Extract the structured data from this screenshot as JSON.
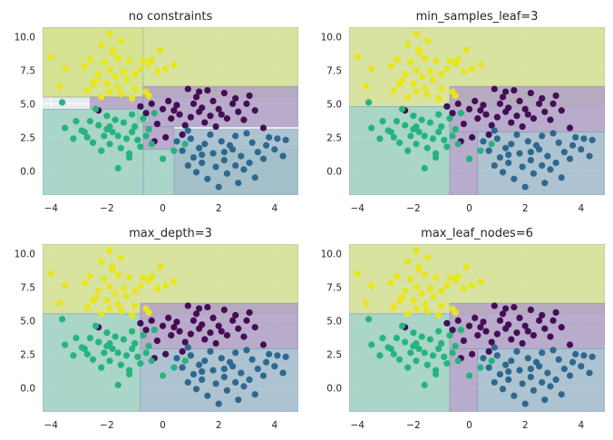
{
  "chart_data": [
    {
      "type": "scatter",
      "title": "no constraints",
      "xlim": [
        -4.3,
        4.85
      ],
      "ylim": [
        -1.8,
        10.7
      ],
      "xticks": [
        -4,
        -2,
        0,
        2,
        4
      ],
      "yticks": [
        0.0,
        2.5,
        5.0,
        7.5,
        10.0
      ],
      "xtick_labels": [
        "−4",
        "−2",
        "0",
        "2",
        "4"
      ],
      "ytick_labels": [
        "0.0",
        "2.5",
        "5.0",
        "7.5",
        "10.0"
      ],
      "grid": true,
      "regions": [
        {
          "class": 0,
          "x0": -4.3,
          "x1": 4.85,
          "y0": 5.5,
          "y1": 10.7
        },
        {
          "class": 0,
          "x0": -4.3,
          "x1": -0.7,
          "y0": 5.5,
          "y1": 10.7
        },
        {
          "class": 1,
          "x0": -2.6,
          "x1": -0.7,
          "y0": 4.6,
          "y1": 5.5
        },
        {
          "class": 1,
          "x0": -0.7,
          "x1": 4.85,
          "y0": 3.3,
          "y1": 6.3
        },
        {
          "class": 1,
          "x0": -0.7,
          "x1": 0.4,
          "y0": 1.6,
          "y1": 3.3
        },
        {
          "class": 2,
          "x0": -4.3,
          "x1": -0.7,
          "y0": -1.8,
          "y1": 4.6
        },
        {
          "class": 2,
          "x0": -0.7,
          "x1": 4.85,
          "y0": -1.8,
          "y1": 1.6
        },
        {
          "class": 3,
          "x0": 0.4,
          "x1": 4.85,
          "y0": -1.8,
          "y1": 3.1
        },
        {
          "class": 2,
          "x0": -0.9,
          "x1": -0.5,
          "y0": 3.6,
          "y1": 4.6
        }
      ]
    },
    {
      "type": "scatter",
      "title": "min_samples_leaf=3",
      "xlim": [
        -4.3,
        4.85
      ],
      "ylim": [
        -1.8,
        10.7
      ],
      "xticks": [
        -4,
        -2,
        0,
        2,
        4
      ],
      "yticks": [
        0.0,
        2.5,
        5.0,
        7.5,
        10.0
      ],
      "xtick_labels": [
        "−4",
        "−2",
        "0",
        "2",
        "4"
      ],
      "ytick_labels": [
        "0.0",
        "2.5",
        "5.0",
        "7.5",
        "10.0"
      ],
      "grid": true,
      "regions": [
        {
          "class": 0,
          "x0": -4.3,
          "x1": 4.85,
          "y0": 4.8,
          "y1": 10.7
        },
        {
          "class": 2,
          "x0": -4.3,
          "x1": -0.7,
          "y0": -1.8,
          "y1": 4.8
        },
        {
          "class": 1,
          "x0": -0.7,
          "x1": 4.85,
          "y0": 2.9,
          "y1": 6.3
        },
        {
          "class": 1,
          "x0": -0.7,
          "x1": 0.3,
          "y0": -1.8,
          "y1": 2.9
        },
        {
          "class": 3,
          "x0": 0.3,
          "x1": 4.85,
          "y0": -1.8,
          "y1": 2.9
        }
      ]
    },
    {
      "type": "scatter",
      "title": "max_depth=3",
      "xlim": [
        -4.3,
        4.85
      ],
      "ylim": [
        -1.8,
        10.7
      ],
      "xticks": [
        -4,
        -2,
        0,
        2,
        4
      ],
      "yticks": [
        0.0,
        2.5,
        5.0,
        7.5,
        10.0
      ],
      "xtick_labels": [
        "−4",
        "−2",
        "0",
        "2",
        "4"
      ],
      "ytick_labels": [
        "0.0",
        "2.5",
        "5.0",
        "7.5",
        "10.0"
      ],
      "grid": true,
      "regions": [
        {
          "class": 0,
          "x0": -4.3,
          "x1": 4.85,
          "y0": 5.5,
          "y1": 10.7
        },
        {
          "class": 2,
          "x0": -4.3,
          "x1": -0.8,
          "y0": -1.8,
          "y1": 5.5
        },
        {
          "class": 1,
          "x0": -0.8,
          "x1": 4.85,
          "y0": 2.9,
          "y1": 6.3
        },
        {
          "class": 3,
          "x0": -0.8,
          "x1": 4.85,
          "y0": -1.8,
          "y1": 2.9
        }
      ]
    },
    {
      "type": "scatter",
      "title": "max_leaf_nodes=6",
      "xlim": [
        -4.3,
        4.85
      ],
      "ylim": [
        -1.8,
        10.7
      ],
      "xticks": [
        -4,
        -2,
        0,
        2,
        4
      ],
      "yticks": [
        0.0,
        2.5,
        5.0,
        7.5,
        10.0
      ],
      "xtick_labels": [
        "−4",
        "−2",
        "0",
        "2",
        "4"
      ],
      "ytick_labels": [
        "0.0",
        "2.5",
        "5.0",
        "7.5",
        "10.0"
      ],
      "grid": true,
      "regions": [
        {
          "class": 0,
          "x0": -4.3,
          "x1": 4.85,
          "y0": 5.5,
          "y1": 10.7
        },
        {
          "class": 2,
          "x0": -4.3,
          "x1": -0.7,
          "y0": -1.8,
          "y1": 5.5
        },
        {
          "class": 1,
          "x0": -0.7,
          "x1": 4.85,
          "y0": 2.9,
          "y1": 6.3
        },
        {
          "class": 1,
          "x0": -0.7,
          "x1": 0.3,
          "y0": -1.8,
          "y1": 2.9
        },
        {
          "class": 3,
          "x0": 0.3,
          "x1": 4.85,
          "y0": -1.8,
          "y1": 2.9
        }
      ]
    }
  ],
  "points": [
    {
      "class": 0,
      "x": -1.9,
      "y": 10.2
    },
    {
      "class": 0,
      "x": -0.1,
      "y": 9.0
    },
    {
      "class": 0,
      "x": -1.5,
      "y": 9.7
    },
    {
      "class": 0,
      "x": -2.2,
      "y": 9.4
    },
    {
      "class": 0,
      "x": -2.6,
      "y": 8.3
    },
    {
      "class": 0,
      "x": -4.0,
      "y": 8.5
    },
    {
      "class": 0,
      "x": -1.8,
      "y": 8.8
    },
    {
      "class": 0,
      "x": -1.6,
      "y": 8.4
    },
    {
      "class": 0,
      "x": -2.1,
      "y": 8.1
    },
    {
      "class": 0,
      "x": -1.2,
      "y": 8.2
    },
    {
      "class": 0,
      "x": -0.7,
      "y": 8.2
    },
    {
      "class": 0,
      "x": -0.5,
      "y": 8.0
    },
    {
      "class": 0,
      "x": -0.4,
      "y": 8.3
    },
    {
      "class": 0,
      "x": -0.8,
      "y": 7.6
    },
    {
      "class": 0,
      "x": -1.4,
      "y": 7.4
    },
    {
      "class": 0,
      "x": -1.9,
      "y": 7.5
    },
    {
      "class": 0,
      "x": -2.3,
      "y": 7.2
    },
    {
      "class": 0,
      "x": -1.7,
      "y": 7.0
    },
    {
      "class": 0,
      "x": -1.3,
      "y": 6.8
    },
    {
      "class": 0,
      "x": -2.0,
      "y": 6.5
    },
    {
      "class": 0,
      "x": -2.4,
      "y": 6.7
    },
    {
      "class": 0,
      "x": -1.6,
      "y": 6.2
    },
    {
      "class": 0,
      "x": -1.9,
      "y": 5.9
    },
    {
      "class": 0,
      "x": -3.5,
      "y": 7.6
    },
    {
      "class": 0,
      "x": -3.7,
      "y": 6.3
    },
    {
      "class": 0,
      "x": -2.8,
      "y": 7.8
    },
    {
      "class": 0,
      "x": -0.2,
      "y": 7.4
    },
    {
      "class": 0,
      "x": 0.1,
      "y": 7.6
    },
    {
      "class": 0,
      "x": -1.0,
      "y": 6.1
    },
    {
      "class": 0,
      "x": -0.6,
      "y": 5.9
    },
    {
      "class": 0,
      "x": -2.7,
      "y": 6.0
    },
    {
      "class": 0,
      "x": -1.5,
      "y": 5.7
    },
    {
      "class": 0,
      "x": -2.2,
      "y": 5.5
    },
    {
      "class": 0,
      "x": -1.1,
      "y": 5.4
    },
    {
      "class": 0,
      "x": 0.4,
      "y": 7.9
    },
    {
      "class": 0,
      "x": -1.0,
      "y": 7.2
    },
    {
      "class": 0,
      "x": -0.5,
      "y": 5.6
    },
    {
      "class": 0,
      "x": -2.5,
      "y": 6.5
    },
    {
      "class": 0,
      "x": -1.8,
      "y": 9.0
    },
    {
      "class": 1,
      "x": 0.9,
      "y": 6.1
    },
    {
      "class": 1,
      "x": 1.3,
      "y": 5.9
    },
    {
      "class": 1,
      "x": 2.2,
      "y": 5.8
    },
    {
      "class": 1,
      "x": 3.1,
      "y": 5.6
    },
    {
      "class": 1,
      "x": 2.6,
      "y": 5.4
    },
    {
      "class": 1,
      "x": 1.8,
      "y": 5.2
    },
    {
      "class": 1,
      "x": 1.1,
      "y": 5.0
    },
    {
      "class": 1,
      "x": 0.5,
      "y": 4.9
    },
    {
      "class": 1,
      "x": 1.4,
      "y": 4.7
    },
    {
      "class": 1,
      "x": 2.0,
      "y": 4.6
    },
    {
      "class": 1,
      "x": 2.7,
      "y": 4.4
    },
    {
      "class": 1,
      "x": 3.3,
      "y": 4.5
    },
    {
      "class": 1,
      "x": 1.7,
      "y": 4.1
    },
    {
      "class": 1,
      "x": 1.0,
      "y": 4.0
    },
    {
      "class": 1,
      "x": 0.6,
      "y": 4.2
    },
    {
      "class": 1,
      "x": 0.0,
      "y": 4.6
    },
    {
      "class": 1,
      "x": -0.6,
      "y": 4.3
    },
    {
      "class": 1,
      "x": 0.2,
      "y": 5.2
    },
    {
      "class": 1,
      "x": -0.4,
      "y": 5.0
    },
    {
      "class": 1,
      "x": 2.3,
      "y": 3.9
    },
    {
      "class": 1,
      "x": 2.9,
      "y": 3.8
    },
    {
      "class": 1,
      "x": 1.5,
      "y": 3.6
    },
    {
      "class": 1,
      "x": 0.8,
      "y": 3.4
    },
    {
      "class": 1,
      "x": 2.5,
      "y": 5.0
    },
    {
      "class": 1,
      "x": 1.2,
      "y": 5.5
    },
    {
      "class": 1,
      "x": 0.3,
      "y": 3.9
    },
    {
      "class": 1,
      "x": -0.2,
      "y": 3.5
    },
    {
      "class": 1,
      "x": 1.9,
      "y": 3.3
    },
    {
      "class": 1,
      "x": 0.7,
      "y": 2.7
    },
    {
      "class": 1,
      "x": -0.8,
      "y": 4.8
    },
    {
      "class": 1,
      "x": -2.3,
      "y": 4.5
    },
    {
      "class": 1,
      "x": 3.6,
      "y": 3.2
    },
    {
      "class": 1,
      "x": 0.1,
      "y": 2.5
    },
    {
      "class": 1,
      "x": 3.0,
      "y": 5.0
    },
    {
      "class": 1,
      "x": 1.6,
      "y": 6.0
    },
    {
      "class": 1,
      "x": 0.4,
      "y": 4.5
    },
    {
      "class": 1,
      "x": 2.1,
      "y": 4.2
    },
    {
      "class": 1,
      "x": -0.3,
      "y": 2.2
    },
    {
      "class": 1,
      "x": 1.3,
      "y": 4.4
    },
    {
      "class": 2,
      "x": -3.6,
      "y": 5.1
    },
    {
      "class": 2,
      "x": -3.1,
      "y": 3.7
    },
    {
      "class": 2,
      "x": -3.5,
      "y": 3.2
    },
    {
      "class": 2,
      "x": -2.9,
      "y": 3.0
    },
    {
      "class": 2,
      "x": -2.7,
      "y": 2.5
    },
    {
      "class": 2,
      "x": -3.2,
      "y": 2.4
    },
    {
      "class": 2,
      "x": -2.5,
      "y": 2.1
    },
    {
      "class": 2,
      "x": -2.3,
      "y": 3.4
    },
    {
      "class": 2,
      "x": -2.0,
      "y": 3.1
    },
    {
      "class": 2,
      "x": -1.8,
      "y": 2.9
    },
    {
      "class": 2,
      "x": -1.6,
      "y": 2.6
    },
    {
      "class": 2,
      "x": -1.3,
      "y": 2.4
    },
    {
      "class": 2,
      "x": -1.1,
      "y": 2.9
    },
    {
      "class": 2,
      "x": -0.9,
      "y": 2.3
    },
    {
      "class": 2,
      "x": -0.6,
      "y": 2.6
    },
    {
      "class": 2,
      "x": -1.9,
      "y": 2.0
    },
    {
      "class": 2,
      "x": -1.5,
      "y": 1.7
    },
    {
      "class": 2,
      "x": -2.2,
      "y": 1.5
    },
    {
      "class": 2,
      "x": -1.2,
      "y": 1.3
    },
    {
      "class": 2,
      "x": -0.8,
      "y": 1.8
    },
    {
      "class": 2,
      "x": -2.6,
      "y": 3.7
    },
    {
      "class": 2,
      "x": -2.0,
      "y": 4.1
    },
    {
      "class": 2,
      "x": -1.4,
      "y": 3.6
    },
    {
      "class": 2,
      "x": -1.0,
      "y": 3.3
    },
    {
      "class": 2,
      "x": -0.7,
      "y": 3.9
    },
    {
      "class": 2,
      "x": -1.7,
      "y": 3.8
    },
    {
      "class": 2,
      "x": -2.4,
      "y": 4.6
    },
    {
      "class": 2,
      "x": -1.1,
      "y": 4.2
    },
    {
      "class": 2,
      "x": -0.5,
      "y": 3.1
    },
    {
      "class": 2,
      "x": -1.6,
      "y": 0.2
    },
    {
      "class": 2,
      "x": 0.0,
      "y": 0.9
    },
    {
      "class": 2,
      "x": -1.2,
      "y": 1.0
    },
    {
      "class": 2,
      "x": -2.8,
      "y": 2.9
    },
    {
      "class": 2,
      "x": -0.4,
      "y": 2.0
    },
    {
      "class": 2,
      "x": 0.4,
      "y": 1.5
    },
    {
      "class": 2,
      "x": 0.8,
      "y": 2.0
    },
    {
      "class": 2,
      "x": -1.9,
      "y": 3.3
    },
    {
      "class": 2,
      "x": -2.1,
      "y": 2.6
    },
    {
      "class": 2,
      "x": -0.3,
      "y": 4.3
    },
    {
      "class": 3,
      "x": 0.7,
      "y": 1.5
    },
    {
      "class": 3,
      "x": 1.1,
      "y": 1.0
    },
    {
      "class": 3,
      "x": 1.4,
      "y": 0.6
    },
    {
      "class": 3,
      "x": 1.8,
      "y": 1.3
    },
    {
      "class": 3,
      "x": 2.2,
      "y": 0.8
    },
    {
      "class": 3,
      "x": 2.5,
      "y": 1.6
    },
    {
      "class": 3,
      "x": 2.8,
      "y": 1.1
    },
    {
      "class": 3,
      "x": 3.1,
      "y": 0.6
    },
    {
      "class": 3,
      "x": 3.4,
      "y": 1.4
    },
    {
      "class": 3,
      "x": 3.7,
      "y": 1.9
    },
    {
      "class": 3,
      "x": 4.1,
      "y": 2.4
    },
    {
      "class": 3,
      "x": 4.4,
      "y": 2.3
    },
    {
      "class": 3,
      "x": 4.0,
      "y": 1.6
    },
    {
      "class": 3,
      "x": 3.2,
      "y": 2.1
    },
    {
      "class": 3,
      "x": 2.6,
      "y": 2.6
    },
    {
      "class": 3,
      "x": 2.1,
      "y": 2.2
    },
    {
      "class": 3,
      "x": 1.5,
      "y": 2.0
    },
    {
      "class": 3,
      "x": 1.0,
      "y": 2.4
    },
    {
      "class": 3,
      "x": 0.5,
      "y": 2.2
    },
    {
      "class": 3,
      "x": 1.3,
      "y": 1.7
    },
    {
      "class": 3,
      "x": 1.9,
      "y": 0.3
    },
    {
      "class": 3,
      "x": 2.3,
      "y": -0.2
    },
    {
      "class": 3,
      "x": 2.9,
      "y": 0.1
    },
    {
      "class": 3,
      "x": 3.3,
      "y": -0.5
    },
    {
      "class": 3,
      "x": 1.6,
      "y": -0.6
    },
    {
      "class": 3,
      "x": 1.2,
      "y": -0.1
    },
    {
      "class": 3,
      "x": 0.9,
      "y": 0.4
    },
    {
      "class": 3,
      "x": 2.7,
      "y": -0.9
    },
    {
      "class": 3,
      "x": 2.0,
      "y": -1.2
    },
    {
      "class": 3,
      "x": 4.3,
      "y": 1.1
    },
    {
      "class": 3,
      "x": 3.6,
      "y": 0.9
    },
    {
      "class": 3,
      "x": 2.4,
      "y": 1.9
    },
    {
      "class": 3,
      "x": 1.7,
      "y": 2.7
    },
    {
      "class": 3,
      "x": 0.9,
      "y": 3.0
    },
    {
      "class": 3,
      "x": 3.0,
      "y": 2.8
    },
    {
      "class": 3,
      "x": 3.8,
      "y": 2.5
    },
    {
      "class": 3,
      "x": 2.2,
      "y": 1.4
    },
    {
      "class": 3,
      "x": 1.4,
      "y": 1.2
    },
    {
      "class": 3,
      "x": 2.6,
      "y": 0.4
    }
  ],
  "colors": {
    "class_point": [
      "#e8e51e",
      "#440d55",
      "#24b47d",
      "#2e688e"
    ],
    "class_fill": [
      "#d4e28f",
      "#b0a0c6",
      "#9fd1c2",
      "#a3bccb"
    ],
    "background": "#eaeaf2",
    "grid": "#ffffff",
    "text": "#262626"
  }
}
